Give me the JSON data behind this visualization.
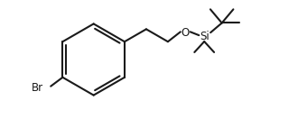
{
  "background_color": "#ffffff",
  "line_color": "#1a1a1a",
  "line_width": 1.5,
  "font_size_label": 8.5,
  "label_Br": "Br",
  "label_O": "O",
  "label_Si": "Si",
  "figsize": [
    3.3,
    1.32
  ],
  "dpi": 100
}
